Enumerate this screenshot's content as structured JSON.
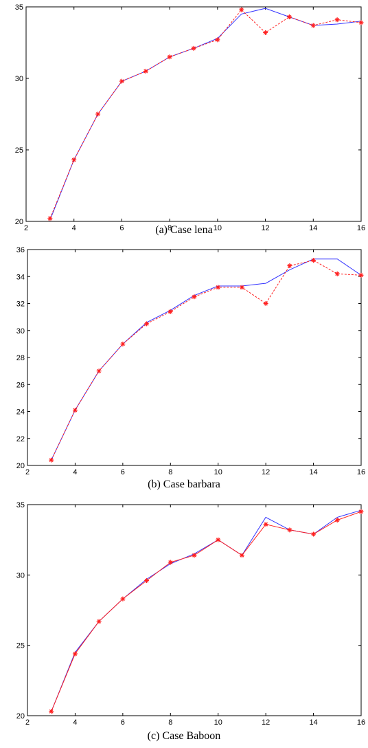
{
  "chart_data": [
    {
      "type": "line",
      "title": "",
      "caption": "(a) Case lena",
      "xlim": [
        2,
        16
      ],
      "ylim": [
        20,
        35
      ],
      "xticks": [
        2,
        4,
        6,
        8,
        10,
        12,
        14,
        16
      ],
      "yticks": [
        20,
        25,
        30,
        35
      ],
      "grid": false,
      "series": [
        {
          "color": "#3333ff",
          "style": "solid",
          "marker": "none",
          "x": [
            3,
            4,
            5,
            6,
            7,
            8,
            9,
            10,
            11,
            12,
            13,
            14,
            15,
            16
          ],
          "y": [
            20.1,
            24.3,
            27.5,
            29.8,
            30.5,
            31.5,
            32.1,
            32.8,
            34.5,
            34.9,
            34.3,
            33.7,
            33.8,
            34.0
          ]
        },
        {
          "color": "#ff2020",
          "style": "dashed",
          "marker": "star",
          "x": [
            3,
            4,
            5,
            6,
            7,
            8,
            9,
            10,
            11,
            12,
            13,
            14,
            15,
            16
          ],
          "y": [
            20.2,
            24.3,
            27.5,
            29.8,
            30.5,
            31.5,
            32.1,
            32.7,
            34.8,
            33.2,
            34.3,
            33.7,
            34.1,
            33.9
          ]
        }
      ]
    },
    {
      "type": "line",
      "title": "",
      "caption": "(b) Case barbara",
      "xlim": [
        2,
        16
      ],
      "ylim": [
        20,
        36
      ],
      "xticks": [
        2,
        4,
        6,
        8,
        10,
        12,
        14,
        16
      ],
      "yticks": [
        20,
        22,
        24,
        26,
        28,
        30,
        32,
        34,
        36
      ],
      "grid": false,
      "series": [
        {
          "color": "#3333ff",
          "style": "solid",
          "marker": "none",
          "x": [
            3,
            4,
            5,
            6,
            7,
            8,
            9,
            10,
            11,
            12,
            13,
            14,
            15,
            16
          ],
          "y": [
            20.4,
            24.1,
            27.0,
            29.0,
            30.6,
            31.5,
            32.6,
            33.3,
            33.3,
            33.5,
            34.5,
            35.3,
            35.3,
            34.1
          ]
        },
        {
          "color": "#ff2020",
          "style": "dashed",
          "marker": "star",
          "x": [
            3,
            4,
            5,
            6,
            7,
            8,
            9,
            10,
            11,
            12,
            13,
            14,
            15,
            16
          ],
          "y": [
            20.4,
            24.1,
            27.0,
            29.0,
            30.5,
            31.4,
            32.5,
            33.2,
            33.2,
            32.0,
            34.8,
            35.2,
            34.2,
            34.1
          ]
        }
      ]
    },
    {
      "type": "line",
      "title": "",
      "caption": "(c) Case Baboon",
      "xlim": [
        2,
        16
      ],
      "ylim": [
        20,
        35
      ],
      "xticks": [
        2,
        4,
        6,
        8,
        10,
        12,
        14,
        16
      ],
      "yticks": [
        20,
        25,
        30,
        35
      ],
      "grid": false,
      "series": [
        {
          "color": "#3333ff",
          "style": "solid",
          "marker": "none",
          "x": [
            3,
            4,
            5,
            6,
            7,
            8,
            9,
            10,
            11,
            12,
            13,
            14,
            15,
            16
          ],
          "y": [
            20.3,
            24.5,
            26.7,
            28.3,
            29.7,
            30.8,
            31.5,
            32.5,
            31.4,
            34.1,
            33.2,
            32.9,
            34.1,
            34.6
          ]
        },
        {
          "color": "#ff2020",
          "style": "solid",
          "marker": "star",
          "x": [
            3,
            4,
            5,
            6,
            7,
            8,
            9,
            10,
            11,
            12,
            13,
            14,
            15,
            16
          ],
          "y": [
            20.3,
            24.4,
            26.7,
            28.3,
            29.6,
            30.9,
            31.4,
            32.5,
            31.4,
            33.6,
            33.2,
            32.9,
            33.9,
            34.5
          ]
        }
      ]
    }
  ]
}
